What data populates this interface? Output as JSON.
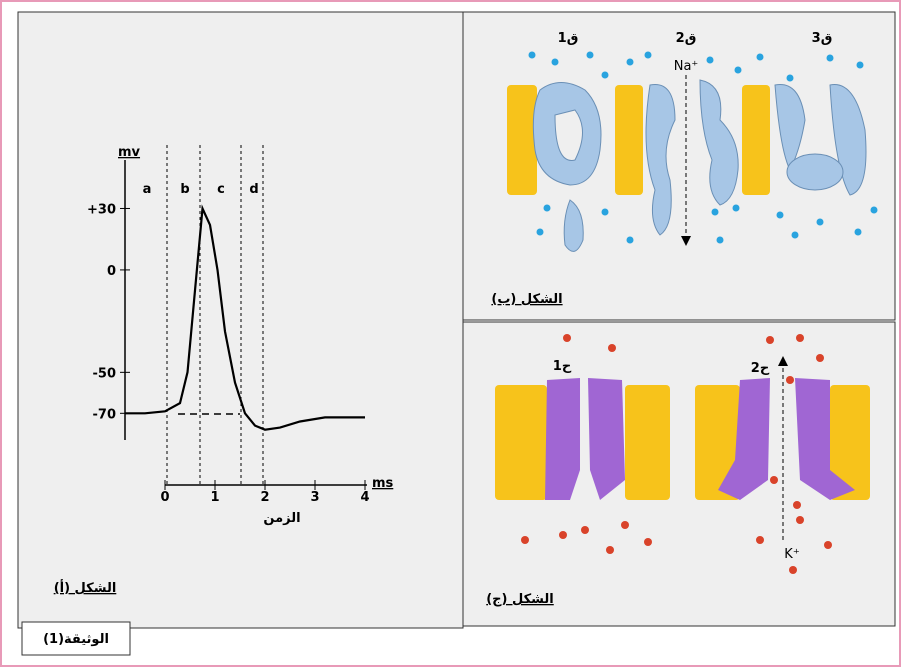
{
  "document_label": "الوثيقة(1)",
  "panel_a": {
    "caption": "الشكل (أ)",
    "y_unit": "mv",
    "x_unit": "ms",
    "x_label": "الزمن",
    "phases": [
      "a",
      "b",
      "c",
      "d"
    ],
    "ylim": [
      -105,
      50
    ],
    "xlim": [
      -0.8,
      4
    ],
    "yticks": [
      {
        "value": 30,
        "label": "+30"
      },
      0,
      -50,
      -70
    ],
    "xticks": [
      0,
      1,
      2,
      3,
      4
    ],
    "curve": {
      "x": [
        -0.8,
        -0.4,
        0,
        0.3,
        0.45,
        0.6,
        0.75,
        0.9,
        1.05,
        1.2,
        1.4,
        1.6,
        1.8,
        2.0,
        2.3,
        2.7,
        3.2,
        4.0
      ],
      "values": [
        -70,
        -70,
        -69,
        -65,
        -50,
        -10,
        30,
        22,
        0,
        -30,
        -55,
        -70,
        -76,
        -78,
        -77,
        -74,
        -72,
        -72
      ]
    }
  },
  "panel_b": {
    "caption": "الشكل (ب)",
    "channels": [
      "ق1",
      "ق2",
      "ق3"
    ],
    "ion": "Na⁺"
  },
  "panel_c": {
    "caption": "الشكل (ج)",
    "channels": [
      "ح1",
      "ح2"
    ],
    "ion": "K⁺"
  }
}
